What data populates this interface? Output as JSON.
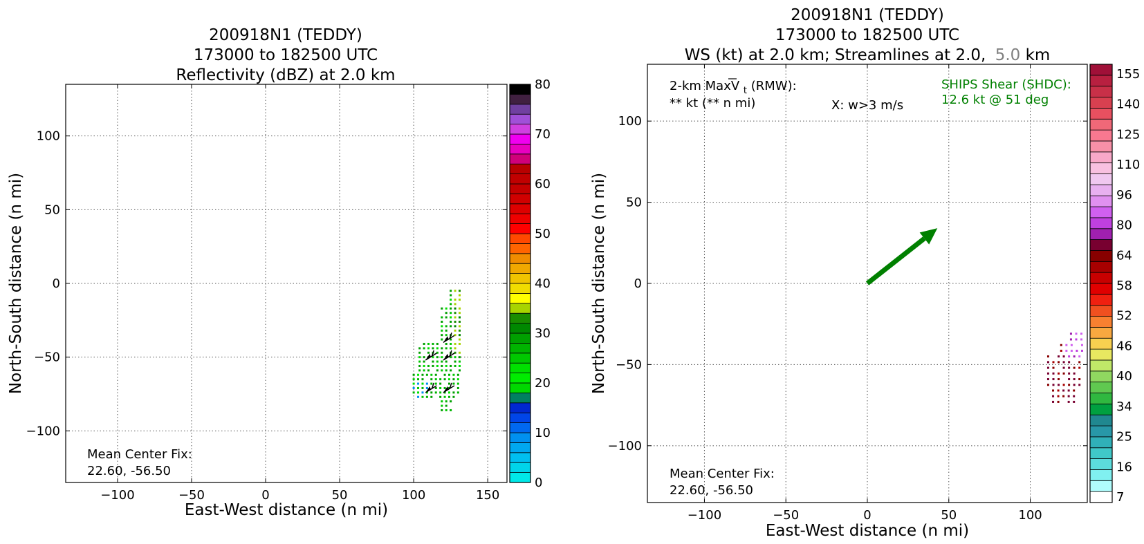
{
  "chart_data": [
    {
      "type": "heatmap",
      "title_lines": [
        "200918N1 (TEDDY)",
        "173000 to 182500 UTC",
        "Reflectivity (dBZ) at 2.0 km"
      ],
      "xlabel": "East-West distance (n mi)",
      "ylabel": "North-South distance (n mi)",
      "xlim": [
        -135,
        163
      ],
      "ylim": [
        -135,
        135
      ],
      "xticks": [
        -100,
        -50,
        0,
        50,
        100,
        150
      ],
      "yticks": [
        -100,
        -50,
        0,
        50,
        100
      ],
      "grid": true,
      "center_fix_label": "Mean Center Fix:",
      "center_fix_value": "22.60, -56.50",
      "colorbar": {
        "min": 0,
        "max": 80,
        "ticks": [
          0,
          10,
          20,
          30,
          40,
          50,
          60,
          70,
          80
        ],
        "colors": [
          "#00e8e8",
          "#00d4ea",
          "#00bff0",
          "#00a8f0",
          "#0090f0",
          "#0068f0",
          "#0045e8",
          "#0028d0",
          "#008060",
          "#00d800",
          "#00ec00",
          "#00e000",
          "#00c800",
          "#00b400",
          "#00a000",
          "#008800",
          "#1a8c00",
          "#a8d400",
          "#ffff00",
          "#f0dc00",
          "#f0c400",
          "#f0a800",
          "#f08c00",
          "#ff6400",
          "#ff4800",
          "#ff0000",
          "#ee0000",
          "#dd0000",
          "#d00000",
          "#c40000",
          "#c00000",
          "#b80000",
          "#d0007a",
          "#e800c0",
          "#f000f0",
          "#d040e0",
          "#a050d8",
          "#7040a0",
          "#402040",
          "#000000"
        ]
      },
      "field": {
        "x_range": [
          100,
          132
        ],
        "y_range": [
          -86,
          -4
        ],
        "values_note_dbz": [
          18,
          22,
          26,
          30,
          34,
          38
        ]
      },
      "wind_barbs": [
        {
          "x": 108,
          "y": -52
        },
        {
          "x": 120,
          "y": -40
        },
        {
          "x": 120,
          "y": -52
        },
        {
          "x": 108,
          "y": -74
        },
        {
          "x": 120,
          "y": -74
        }
      ]
    },
    {
      "type": "heatmap",
      "title_lines": [
        "200918N1 (TEDDY)",
        "173000 to 182500 UTC"
      ],
      "title_line3_a": "WS (kt) at 2.0 km; Streamlines at 2.0,",
      "title_line3_b": "5.0",
      "title_line3_c": "km",
      "title_line3_b_color": "#808080",
      "xlabel": "East-West distance (n mi)",
      "ylabel": "North-South distance (n mi)",
      "xlim": [
        -135,
        135
      ],
      "ylim": [
        -135,
        135
      ],
      "xticks": [
        -100,
        -50,
        0,
        50,
        100
      ],
      "yticks": [
        -100,
        -50,
        0,
        50,
        100
      ],
      "grid": true,
      "annot_max_line1": "2-km MaxV",
      "annot_max_sub": "t",
      "annot_max_suffix": " (RMW):",
      "annot_max_line2": "** kt (** n mi)",
      "annot_w": "X: w>3 m/s",
      "shear_label": "SHIPS Shear (SHDC):",
      "shear_value": "12.6 kt @ 51 deg",
      "shear_color": "#008000",
      "shear_vector": {
        "x0": 0,
        "y0": 0,
        "x1": 43,
        "y1": 34
      },
      "center_fix_label": "Mean Center Fix:",
      "center_fix_value": "22.60, -56.50",
      "colorbar": {
        "tick_labels": [
          "7",
          "16",
          "25",
          "34",
          "40",
          "46",
          "52",
          "58",
          "64",
          "80",
          "96",
          "110",
          "125",
          "140",
          "155"
        ],
        "colors": [
          "#ffffff",
          "#b0fcfc",
          "#80f0f0",
          "#5cdcdc",
          "#40c8c8",
          "#30b0b8",
          "#2898a8",
          "#208890",
          "#00a040",
          "#30b840",
          "#60c850",
          "#90d860",
          "#c0e868",
          "#e8e860",
          "#f8d050",
          "#f8a840",
          "#f88030",
          "#f05020",
          "#f02010",
          "#e00000",
          "#c80000",
          "#a80000",
          "#880000",
          "#780030",
          "#a020b0",
          "#c040e0",
          "#d060f0",
          "#e090f0",
          "#e8b0f0",
          "#f0c8f0",
          "#f8c0e0",
          "#f8a8c8",
          "#f890a8",
          "#f87890",
          "#f06878",
          "#e85060",
          "#d84050",
          "#c83048",
          "#b82040",
          "#a01038"
        ]
      },
      "field": {
        "x_range": [
          111,
          133
        ],
        "y_range": [
          -73,
          -31
        ]
      }
    }
  ]
}
